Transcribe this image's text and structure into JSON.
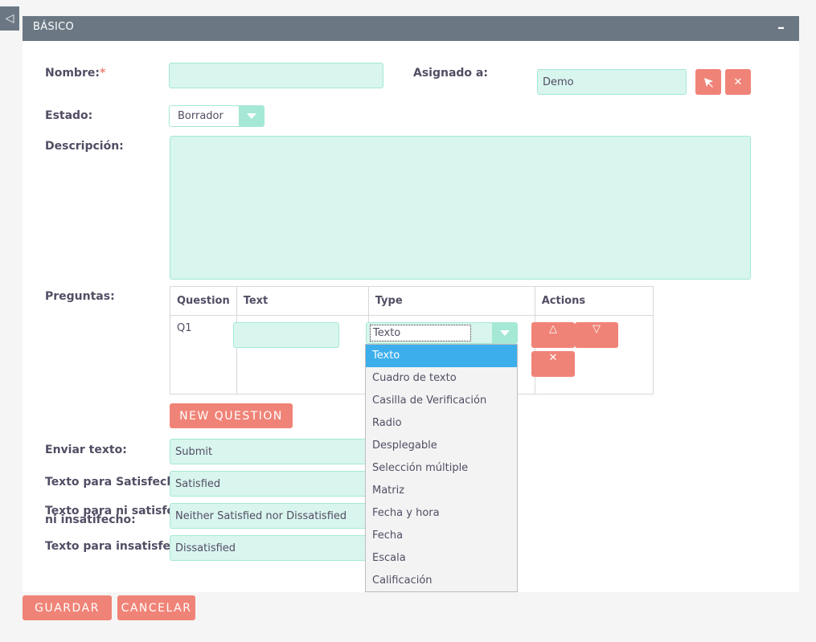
{
  "panel": {
    "title": "BÁSICO",
    "collapse_icon": "minus-icon",
    "toggle_icon": "triangle-left-icon"
  },
  "form": {
    "nombre": {
      "label": "Nombre:",
      "required_mark": "*",
      "value": ""
    },
    "asignado": {
      "label": "Asignado a:",
      "value": "Demo",
      "select_icon": "select-arrow-icon",
      "clear_icon": "close-icon"
    },
    "estado": {
      "label": "Estado:",
      "value": "Borrador"
    },
    "descripcion": {
      "label": "Descripción:",
      "value": ""
    },
    "preguntas": {
      "label": "Preguntas:",
      "columns": [
        "Question",
        "Text",
        "Type",
        "Actions"
      ],
      "rows": [
        {
          "question": "Q1",
          "text": "",
          "type": "Texto"
        }
      ],
      "actions": {
        "up": "△",
        "down": "▽",
        "delete": "✕"
      },
      "new_question": "NEW QUESTION"
    },
    "enviar_texto": {
      "label": "Enviar texto:",
      "value": "Submit"
    },
    "satisfecho": {
      "label": "Texto para Satisfecho:",
      "value": "Satisfied"
    },
    "ni_satisfecho": {
      "label_line1": "Texto para ni satisfecho",
      "label_line2": "ni insatifecho:",
      "value": "Neither Satisfied nor Dissatisfied"
    },
    "insatisfecho": {
      "label": "Texto para insatisfecho:",
      "value": "Dissatisfied"
    }
  },
  "type_dropdown": {
    "options": [
      "Texto",
      "Cuadro de texto",
      "Casilla de Verificación",
      "Radio",
      "Desplegable",
      "Selección múltiple",
      "Matriz",
      "Fecha y hora",
      "Fecha",
      "Escala",
      "Calificación"
    ],
    "selected": "Texto"
  },
  "footer": {
    "save": "GUARDAR",
    "cancel": "CANCELAR"
  },
  "colors": {
    "header": "#6b7884",
    "accent": "#f08377",
    "field_bg": "#d8f5ee",
    "field_border": "#a5e8d6",
    "highlight": "#3daeec"
  }
}
